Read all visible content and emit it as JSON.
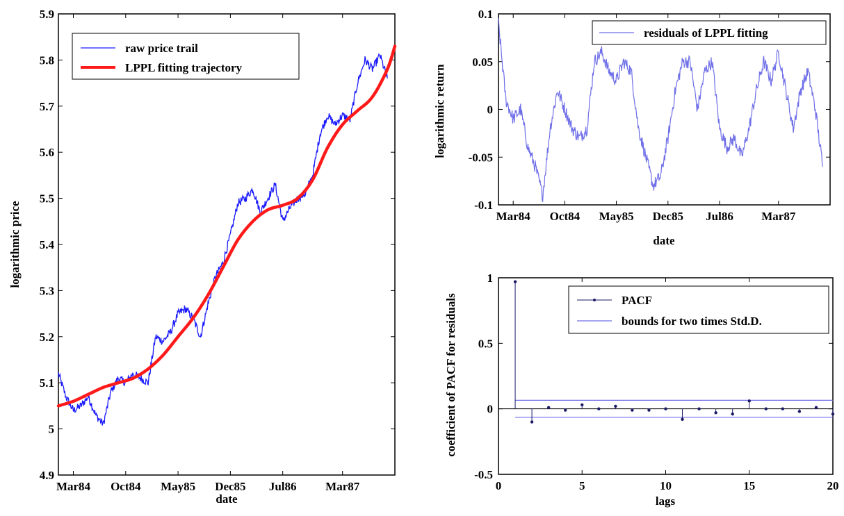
{
  "chart_data": [
    {
      "type": "line",
      "xlabel": "date",
      "ylabel": "logarithmic price",
      "ylim": [
        4.9,
        5.9
      ],
      "yticks": [
        "4.9",
        "5",
        "5.1",
        "5.2",
        "5.3",
        "5.4",
        "5.5",
        "5.6",
        "5.7",
        "5.8",
        "5.9"
      ],
      "xticks": [
        {
          "label": "Mar84",
          "date": "1984-03"
        },
        {
          "label": "Oct84",
          "date": "1984-10"
        },
        {
          "label": "May85",
          "date": "1985-05"
        },
        {
          "label": "Dec85",
          "date": "1985-12"
        },
        {
          "label": "Jul86",
          "date": "1986-07"
        },
        {
          "label": "Mar87",
          "date": "1987-03"
        }
      ],
      "xlim": [
        "1984-01",
        "1987-10"
      ],
      "legend_position": "top-left",
      "series": [
        {
          "name": "raw price trail",
          "color": "#1a1aff",
          "points": [
            [
              "1984-01",
              5.12
            ],
            [
              "1984-02",
              5.07
            ],
            [
              "1984-03",
              5.04
            ],
            [
              "1984-04",
              5.05
            ],
            [
              "1984-05",
              5.07
            ],
            [
              "1984-06",
              5.03
            ],
            [
              "1984-07",
              5.01
            ],
            [
              "1984-08",
              5.08
            ],
            [
              "1984-09",
              5.11
            ],
            [
              "1984-10",
              5.1
            ],
            [
              "1984-11",
              5.12
            ],
            [
              "1984-12",
              5.11
            ],
            [
              "1985-01",
              5.1
            ],
            [
              "1985-02",
              5.2
            ],
            [
              "1985-03",
              5.19
            ],
            [
              "1985-04",
              5.21
            ],
            [
              "1985-05",
              5.25
            ],
            [
              "1985-06",
              5.26
            ],
            [
              "1985-07",
              5.24
            ],
            [
              "1985-08",
              5.2
            ],
            [
              "1985-09",
              5.27
            ],
            [
              "1985-10",
              5.33
            ],
            [
              "1985-11",
              5.36
            ],
            [
              "1985-12",
              5.42
            ],
            [
              "1986-01",
              5.49
            ],
            [
              "1986-02",
              5.5
            ],
            [
              "1986-03",
              5.52
            ],
            [
              "1986-04",
              5.47
            ],
            [
              "1986-05",
              5.5
            ],
            [
              "1986-06",
              5.53
            ],
            [
              "1986-07",
              5.45
            ],
            [
              "1986-08",
              5.48
            ],
            [
              "1986-09",
              5.5
            ],
            [
              "1986-10",
              5.51
            ],
            [
              "1986-11",
              5.55
            ],
            [
              "1986-12",
              5.64
            ],
            [
              "1987-01",
              5.68
            ],
            [
              "1987-02",
              5.66
            ],
            [
              "1987-03",
              5.68
            ],
            [
              "1987-04",
              5.67
            ],
            [
              "1987-05",
              5.75
            ],
            [
              "1987-06",
              5.8
            ],
            [
              "1987-07",
              5.78
            ],
            [
              "1987-08",
              5.81
            ],
            [
              "1987-09",
              5.76
            ]
          ]
        },
        {
          "name": "LPPL fitting trajectory",
          "color": "#ff1a1a",
          "points": [
            [
              "1984-01",
              5.05
            ],
            [
              "1984-03",
              5.06
            ],
            [
              "1984-05",
              5.075
            ],
            [
              "1984-07",
              5.09
            ],
            [
              "1984-09",
              5.1
            ],
            [
              "1984-11",
              5.11
            ],
            [
              "1985-01",
              5.13
            ],
            [
              "1985-03",
              5.16
            ],
            [
              "1985-05",
              5.2
            ],
            [
              "1985-07",
              5.24
            ],
            [
              "1985-09",
              5.29
            ],
            [
              "1985-11",
              5.35
            ],
            [
              "1986-01",
              5.41
            ],
            [
              "1986-03",
              5.45
            ],
            [
              "1986-05",
              5.475
            ],
            [
              "1986-07",
              5.485
            ],
            [
              "1986-09",
              5.5
            ],
            [
              "1986-11",
              5.54
            ],
            [
              "1987-01",
              5.61
            ],
            [
              "1987-03",
              5.66
            ],
            [
              "1987-05",
              5.69
            ],
            [
              "1987-07",
              5.72
            ],
            [
              "1987-09",
              5.78
            ],
            [
              "1987-10",
              5.83
            ]
          ]
        }
      ]
    },
    {
      "type": "line",
      "xlabel": "date",
      "ylabel": "logarithmic return",
      "ylim": [
        -0.1,
        0.1
      ],
      "yticks": [
        "-0.1",
        "-0.05",
        "0",
        "0.05",
        "0.1"
      ],
      "xticks": [
        {
          "label": "Mar84",
          "date": "1984-03"
        },
        {
          "label": "Oct84",
          "date": "1984-10"
        },
        {
          "label": "May85",
          "date": "1985-05"
        },
        {
          "label": "Dec85",
          "date": "1985-12"
        },
        {
          "label": "Jul86",
          "date": "1986-07"
        },
        {
          "label": "Mar87",
          "date": "1987-03"
        }
      ],
      "xlim": [
        "1984-01",
        "1987-10"
      ],
      "legend_position": "top-right",
      "series": [
        {
          "name": "residuals of LPPL fitting",
          "color": "#6f6fe8",
          "points": [
            [
              "1984-01",
              0.09
            ],
            [
              "1984-02",
              0.01
            ],
            [
              "1984-03",
              -0.01
            ],
            [
              "1984-04",
              0.0
            ],
            [
              "1984-05",
              -0.04
            ],
            [
              "1984-06",
              -0.06
            ],
            [
              "1984-07",
              -0.09
            ],
            [
              "1984-08",
              -0.02
            ],
            [
              "1984-09",
              0.02
            ],
            [
              "1984-10",
              0.0
            ],
            [
              "1984-11",
              -0.02
            ],
            [
              "1984-12",
              -0.03
            ],
            [
              "1985-01",
              -0.02
            ],
            [
              "1985-02",
              0.05
            ],
            [
              "1985-03",
              0.06
            ],
            [
              "1985-04",
              0.04
            ],
            [
              "1985-05",
              0.03
            ],
            [
              "1985-06",
              0.05
            ],
            [
              "1985-07",
              0.04
            ],
            [
              "1985-08",
              -0.02
            ],
            [
              "1985-09",
              -0.05
            ],
            [
              "1985-10",
              -0.08
            ],
            [
              "1985-11",
              -0.07
            ],
            [
              "1985-12",
              -0.03
            ],
            [
              "1986-01",
              0.02
            ],
            [
              "1986-02",
              0.05
            ],
            [
              "1986-03",
              0.05
            ],
            [
              "1986-04",
              0.0
            ],
            [
              "1986-05",
              0.04
            ],
            [
              "1986-06",
              0.05
            ],
            [
              "1986-07",
              -0.02
            ],
            [
              "1986-08",
              -0.04
            ],
            [
              "1986-09",
              -0.03
            ],
            [
              "1986-10",
              -0.05
            ],
            [
              "1986-11",
              -0.02
            ],
            [
              "1986-12",
              0.02
            ],
            [
              "1987-01",
              0.05
            ],
            [
              "1987-02",
              0.03
            ],
            [
              "1987-03",
              0.06
            ],
            [
              "1987-04",
              0.02
            ],
            [
              "1987-05",
              -0.02
            ],
            [
              "1987-06",
              0.02
            ],
            [
              "1987-07",
              0.04
            ],
            [
              "1987-08",
              0.0
            ],
            [
              "1987-09",
              -0.06
            ]
          ]
        }
      ]
    },
    {
      "type": "scatter",
      "xlabel": "lags",
      "ylabel": "coefficient of PACF for residuals",
      "xlim": [
        0,
        20
      ],
      "ylim": [
        -0.5,
        1
      ],
      "xticks": [
        "0",
        "5",
        "10",
        "15",
        "20"
      ],
      "yticks": [
        "-0.5",
        "0",
        "0.5",
        "1"
      ],
      "legend_position": "top-right",
      "series": [
        {
          "name": "PACF",
          "color": "#1a1a66",
          "x": [
            1,
            2,
            3,
            4,
            5,
            6,
            7,
            8,
            9,
            10,
            11,
            12,
            13,
            14,
            15,
            16,
            17,
            18,
            19,
            20
          ],
          "values": [
            0.97,
            -0.1,
            0.01,
            -0.01,
            0.03,
            0.0,
            0.02,
            -0.01,
            -0.01,
            0.0,
            -0.08,
            0.0,
            -0.03,
            -0.04,
            0.06,
            0.0,
            0.0,
            -0.02,
            0.01,
            -0.04
          ]
        },
        {
          "name": "bounds for two times Std.D.",
          "color": "#6f6fe8",
          "upper": 0.065,
          "lower": -0.065
        }
      ]
    }
  ]
}
